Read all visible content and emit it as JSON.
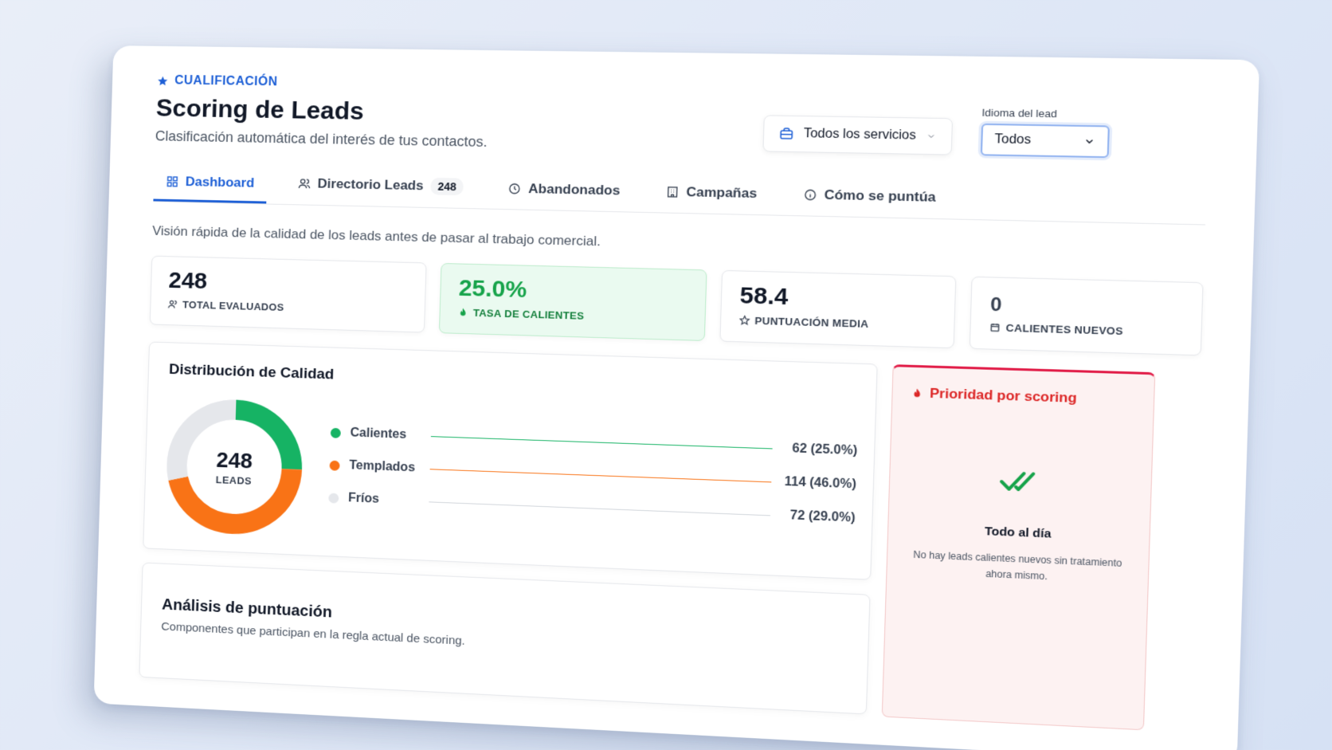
{
  "header": {
    "eyebrow": "CUALIFICACIÓN",
    "title": "Scoring de Leads",
    "subtitle": "Clasificación automática del interés de tus contactos."
  },
  "filters": {
    "service_select": "Todos los servicios",
    "language_label": "Idioma del lead",
    "language_value": "Todos"
  },
  "tabs": [
    {
      "label": "Dashboard",
      "icon": "grid-icon",
      "active": true
    },
    {
      "label": "Directorio Leads",
      "icon": "users-icon",
      "count": "248"
    },
    {
      "label": "Abandonados",
      "icon": "clock-icon"
    },
    {
      "label": "Campañas",
      "icon": "building-icon"
    },
    {
      "label": "Cómo se puntúa",
      "icon": "info-icon"
    }
  ],
  "intro": "Visión rápida de la calidad de los leads antes de pasar al trabajo comercial.",
  "stats": [
    {
      "value": "248",
      "label": "TOTAL EVALUADOS",
      "icon": "users-icon"
    },
    {
      "value": "25.0%",
      "label": "TASA DE CALIENTES",
      "icon": "flame-icon"
    },
    {
      "value": "58.4",
      "label": "PUNTUACIÓN MEDIA",
      "icon": "star-icon"
    },
    {
      "value": "0",
      "label": "CALIENTES NUEVOS",
      "icon": "calendar-icon"
    }
  ],
  "distribution": {
    "title": "Distribución de Calidad",
    "center_value": "248",
    "center_label": "LEADS",
    "items": [
      {
        "name": "Calientes",
        "display": "62 (25.0%)",
        "count": 62,
        "fraction": 0.25,
        "color": "#16b364"
      },
      {
        "name": "Templados",
        "display": "114 (46.0%)",
        "count": 114,
        "fraction": 0.46,
        "color": "#f97316"
      },
      {
        "name": "Fríos",
        "display": "72 (29.0%)",
        "count": 72,
        "fraction": 0.29,
        "color": "#e5e7eb"
      }
    ]
  },
  "analysis": {
    "title": "Análisis de puntuación",
    "subtitle": "Componentes que participan en la regla actual de scoring."
  },
  "priority": {
    "title": "Prioridad por scoring",
    "empty_title": "Todo al día",
    "empty_desc": "No hay leads calientes nuevos sin tratamiento ahora mismo."
  },
  "colors": {
    "accent": "#1d5fd6",
    "hot": "#16b364",
    "warm": "#f97316",
    "cold": "#e5e7eb",
    "danger": "#dc2626"
  }
}
